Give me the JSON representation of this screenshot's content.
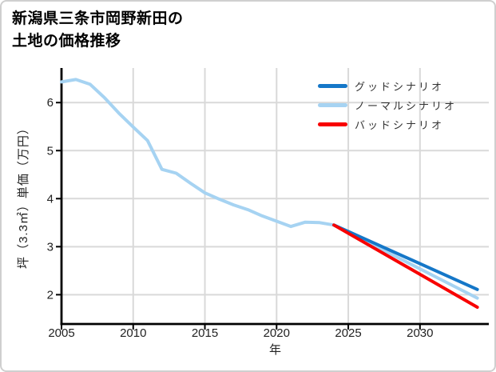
{
  "title": {
    "line1": "新潟県三条市岡野新田の",
    "line2": "土地の価格推移"
  },
  "chart_data": {
    "type": "line",
    "title": "新潟県三条市岡野新田の土地の価格推移",
    "xlabel": "年",
    "ylabel": "坪（3.3㎡）単価（万円）",
    "x_ticks": [
      2005,
      2010,
      2015,
      2020,
      2025,
      2030
    ],
    "y_ticks": [
      2,
      3,
      4,
      5,
      6
    ],
    "xlim": [
      2005,
      2034.8
    ],
    "ylim": [
      1.39,
      6.72
    ],
    "grid": true,
    "legend_position": "top-right",
    "colors": {
      "good": "#1577c8",
      "normal": "#a6d3f2",
      "bad": "#f80000",
      "gridline": "#d9d9d9",
      "axis": "#000000",
      "tick_text": "#222222"
    },
    "series": [
      {
        "name": "グッドシナリオ",
        "key": "good",
        "color": "#1577c8",
        "x": [
          2024,
          2034
        ],
        "values": [
          3.45,
          2.11
        ]
      },
      {
        "name": "ノーマルシナリオ",
        "key": "normal",
        "color": "#a6d3f2",
        "x": [
          2005,
          2006,
          2007,
          2008,
          2009,
          2010,
          2011,
          2012,
          2013,
          2014,
          2015,
          2016,
          2017,
          2018,
          2019,
          2020,
          2021,
          2022,
          2023,
          2024,
          2034
        ],
        "values": [
          6.43,
          6.48,
          6.38,
          6.1,
          5.78,
          5.49,
          5.21,
          4.61,
          4.53,
          4.32,
          4.12,
          3.99,
          3.87,
          3.77,
          3.64,
          3.53,
          3.42,
          3.51,
          3.5,
          3.45,
          1.93
        ]
      },
      {
        "name": "バッドシナリオ",
        "key": "bad",
        "color": "#f80000",
        "x": [
          2024,
          2034
        ],
        "values": [
          3.45,
          1.74
        ]
      }
    ]
  }
}
